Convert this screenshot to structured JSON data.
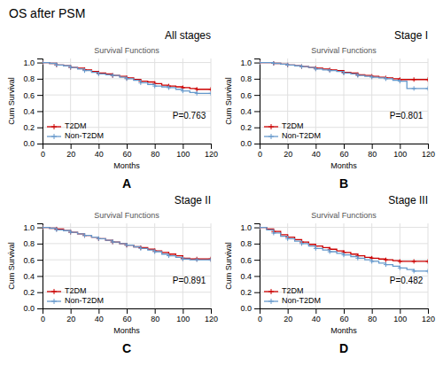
{
  "title": "OS after PSM",
  "chart_data": [
    {
      "type": "step",
      "title": "All stages",
      "subtitle": "Survival Functions",
      "annotation": "P=0.763",
      "panel_label": "A",
      "x_label": "Months",
      "y_label": "Cum Survival",
      "x": [
        0,
        5,
        10,
        15,
        20,
        25,
        30,
        35,
        40,
        45,
        50,
        55,
        60,
        65,
        70,
        75,
        80,
        85,
        90,
        95,
        100,
        105,
        110,
        115,
        120
      ],
      "series": [
        {
          "name": "T2DM",
          "color": "#cc0000",
          "marker": "plus",
          "values": [
            1.0,
            0.99,
            0.97,
            0.96,
            0.94,
            0.93,
            0.91,
            0.89,
            0.87,
            0.86,
            0.84,
            0.83,
            0.81,
            0.79,
            0.77,
            0.76,
            0.74,
            0.72,
            0.71,
            0.7,
            0.69,
            0.68,
            0.67,
            0.67,
            0.67
          ]
        },
        {
          "name": "Non-T2DM",
          "color": "#6699cc",
          "marker": "plus",
          "values": [
            1.0,
            0.99,
            0.97,
            0.96,
            0.94,
            0.92,
            0.9,
            0.88,
            0.86,
            0.85,
            0.84,
            0.82,
            0.8,
            0.78,
            0.75,
            0.73,
            0.71,
            0.7,
            0.69,
            0.67,
            0.65,
            0.63,
            0.62,
            0.62,
            0.62
          ]
        }
      ],
      "xlim": [
        0,
        120
      ],
      "ylim": [
        0.0,
        1.05
      ],
      "xticks": [
        0,
        20,
        40,
        60,
        80,
        100,
        120
      ],
      "yticks": [
        {
          "value": 0.0,
          "label": "0.0"
        },
        0.2,
        0.4,
        0.6,
        0.8,
        {
          "value": 1.0,
          "label": "1.0"
        }
      ],
      "grid": true,
      "legend": "lower left"
    },
    {
      "type": "step",
      "title": "Stage I",
      "subtitle": "Survival Functions",
      "annotation": "P=0.801",
      "panel_label": "B",
      "x_label": "Months",
      "y_label": "Cum Survival",
      "x": [
        0,
        5,
        10,
        15,
        20,
        25,
        30,
        35,
        40,
        45,
        50,
        55,
        60,
        65,
        70,
        75,
        80,
        85,
        90,
        95,
        100,
        105,
        110,
        115,
        120
      ],
      "series": [
        {
          "name": "T2DM",
          "color": "#cc0000",
          "marker": "plus",
          "values": [
            1.0,
            1.0,
            0.99,
            0.98,
            0.97,
            0.96,
            0.95,
            0.94,
            0.93,
            0.92,
            0.91,
            0.9,
            0.88,
            0.87,
            0.85,
            0.84,
            0.83,
            0.82,
            0.81,
            0.8,
            0.79,
            0.79,
            0.79,
            0.79,
            0.79
          ]
        },
        {
          "name": "Non-T2DM",
          "color": "#6699cc",
          "marker": "plus",
          "values": [
            1.0,
            1.0,
            0.99,
            0.98,
            0.97,
            0.96,
            0.95,
            0.94,
            0.92,
            0.91,
            0.9,
            0.89,
            0.87,
            0.86,
            0.84,
            0.83,
            0.82,
            0.81,
            0.8,
            0.78,
            0.77,
            0.68,
            0.68,
            0.68,
            0.68
          ]
        }
      ],
      "xlim": [
        0,
        120
      ],
      "ylim": [
        0.0,
        1.05
      ],
      "xticks": [
        0,
        20,
        40,
        60,
        80,
        100,
        120
      ],
      "yticks": [
        {
          "value": 0.0,
          "label": "0.0"
        },
        0.2,
        0.4,
        0.6,
        0.8,
        {
          "value": 1.0,
          "label": "1.0"
        }
      ],
      "grid": true,
      "legend": "lower left"
    },
    {
      "type": "step",
      "title": "Stage II",
      "subtitle": "Survival Functions",
      "annotation": "P=0.891",
      "panel_label": "C",
      "x_label": "Months",
      "y_label": "Cum Survival",
      "x": [
        0,
        5,
        10,
        15,
        20,
        25,
        30,
        35,
        40,
        45,
        50,
        55,
        60,
        65,
        70,
        75,
        80,
        85,
        90,
        95,
        100,
        105,
        110,
        115,
        120
      ],
      "series": [
        {
          "name": "T2DM",
          "color": "#cc0000",
          "marker": "plus",
          "values": [
            1.0,
            0.99,
            0.98,
            0.96,
            0.94,
            0.92,
            0.9,
            0.88,
            0.86,
            0.84,
            0.82,
            0.8,
            0.78,
            0.76,
            0.75,
            0.73,
            0.71,
            0.69,
            0.67,
            0.65,
            0.62,
            0.61,
            0.61,
            0.61,
            0.61
          ]
        },
        {
          "name": "Non-T2DM",
          "color": "#6699cc",
          "marker": "plus",
          "values": [
            1.0,
            0.99,
            0.97,
            0.96,
            0.94,
            0.92,
            0.9,
            0.88,
            0.86,
            0.84,
            0.82,
            0.8,
            0.78,
            0.76,
            0.74,
            0.72,
            0.7,
            0.67,
            0.65,
            0.63,
            0.61,
            0.6,
            0.6,
            0.6,
            0.6
          ]
        }
      ],
      "xlim": [
        0,
        120
      ],
      "ylim": [
        0.0,
        1.05
      ],
      "xticks": [
        0,
        20,
        40,
        60,
        80,
        100,
        120
      ],
      "yticks": [
        {
          "value": 0.0,
          "label": "0.0"
        },
        0.2,
        0.4,
        0.6,
        0.8,
        {
          "value": 1.0,
          "label": "1.0"
        }
      ],
      "grid": true,
      "legend": "lower left"
    },
    {
      "type": "step",
      "title": "Stage III",
      "subtitle": "Survival Functions",
      "annotation": "P=0.482",
      "panel_label": "D",
      "x_label": "Months",
      "y_label": "Cum Survival",
      "x": [
        0,
        5,
        10,
        15,
        20,
        25,
        30,
        35,
        40,
        45,
        50,
        55,
        60,
        65,
        70,
        75,
        80,
        85,
        90,
        95,
        100,
        105,
        110,
        115,
        120
      ],
      "series": [
        {
          "name": "T2DM",
          "color": "#cc0000",
          "marker": "plus",
          "values": [
            1.0,
            0.98,
            0.95,
            0.91,
            0.88,
            0.85,
            0.82,
            0.79,
            0.77,
            0.75,
            0.73,
            0.71,
            0.69,
            0.67,
            0.65,
            0.63,
            0.62,
            0.61,
            0.6,
            0.59,
            0.58,
            0.58,
            0.58,
            0.58,
            0.58
          ]
        },
        {
          "name": "Non-T2DM",
          "color": "#6699cc",
          "marker": "plus",
          "values": [
            1.0,
            0.97,
            0.93,
            0.89,
            0.86,
            0.83,
            0.8,
            0.77,
            0.74,
            0.72,
            0.7,
            0.68,
            0.66,
            0.64,
            0.62,
            0.6,
            0.58,
            0.56,
            0.54,
            0.52,
            0.5,
            0.48,
            0.46,
            0.46,
            0.46
          ]
        }
      ],
      "xlim": [
        0,
        120
      ],
      "ylim": [
        0.0,
        1.05
      ],
      "xticks": [
        0,
        20,
        40,
        60,
        80,
        100,
        120
      ],
      "yticks": [
        {
          "value": 0.0,
          "label": "0.0"
        },
        0.2,
        0.4,
        0.6,
        0.8,
        {
          "value": 1.0,
          "label": "1.0"
        }
      ],
      "grid": true,
      "legend": "lower left"
    }
  ]
}
